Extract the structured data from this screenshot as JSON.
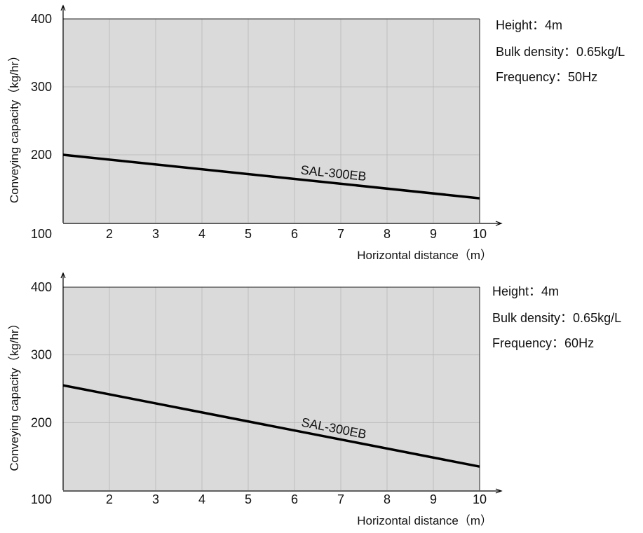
{
  "colors": {
    "plot_background": "#dadada",
    "grid": "#bdbdbd",
    "line": "#000000",
    "axis": "#000000"
  },
  "chart_data": [
    {
      "type": "line",
      "xlabel": "Horizontal distance（m）",
      "ylabel": "Conveying capacity（kg/hr）",
      "xlim": [
        1,
        10
      ],
      "ylim": [
        100,
        400
      ],
      "x_ticks": [
        "2",
        "3",
        "4",
        "5",
        "6",
        "7",
        "8",
        "9",
        "10"
      ],
      "y_ticks": [
        "100",
        "200",
        "300",
        "400"
      ],
      "grid": true,
      "series": [
        {
          "name": "SAL-300EB",
          "x": [
            1,
            10
          ],
          "y": [
            200,
            136
          ]
        }
      ],
      "annotations": [
        "Height：4m",
        "Bulk density：0.65kg/L",
        "Frequency：50Hz"
      ]
    },
    {
      "type": "line",
      "xlabel": "Horizontal distance（m）",
      "ylabel": "Conveying capacity（kg/hr）",
      "xlim": [
        1,
        10
      ],
      "ylim": [
        100,
        400
      ],
      "x_ticks": [
        "2",
        "3",
        "4",
        "5",
        "6",
        "7",
        "8",
        "9",
        "10"
      ],
      "y_ticks": [
        "100",
        "200",
        "300",
        "400"
      ],
      "grid": true,
      "series": [
        {
          "name": "SAL-300EB",
          "x": [
            1,
            10
          ],
          "y": [
            255,
            135
          ]
        }
      ],
      "annotations": [
        "Height：4m",
        "Bulk density：0.65kg/L",
        "Frequency：60Hz"
      ]
    }
  ]
}
